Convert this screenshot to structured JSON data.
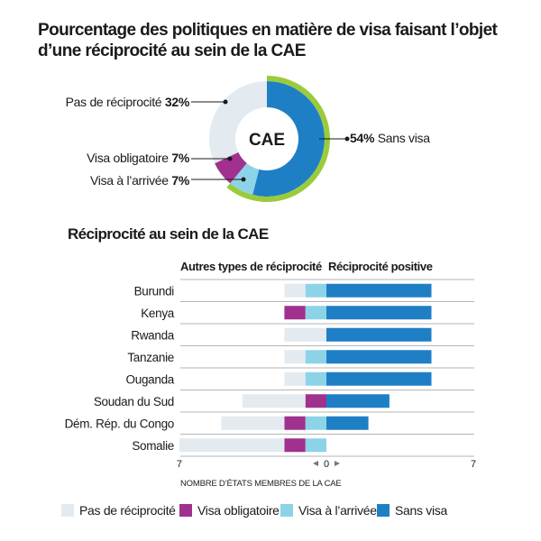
{
  "title_line1": "Pourcentage des politiques en matière de visa faisant l’objet",
  "title_line2": "d’une réciprocité au sein de la CAE",
  "donut": {
    "center_label": "CAE",
    "slices": [
      {
        "key": "sans_visa",
        "label": "Sans visa",
        "value": 54,
        "display": "54%"
      },
      {
        "key": "visa_arrivee",
        "label": "Visa à l’arrivée",
        "value": 7,
        "display": "7%"
      },
      {
        "key": "visa_obligatoire",
        "label": "Visa obligatoire",
        "value": 7,
        "display": "7%"
      },
      {
        "key": "pas_reciprocite",
        "label": "Pas de réciprocité",
        "value": 32,
        "display": "32%"
      }
    ]
  },
  "bar_section": {
    "subtitle": "Réciprocité au sein de la CAE",
    "left_header": "Autres types de réciprocité",
    "right_header": "Réciprocité positive",
    "x_left_tick": "7",
    "x_center_tick": "0",
    "x_right_tick": "7",
    "x_label": "NOMBRE D’ÉTATS MEMBRES DE LA CAE"
  },
  "colors": {
    "pas_reciprocite": "#e3eaf0",
    "visa_obligatoire": "#a0318e",
    "visa_arrivee": "#8dd3e8",
    "sans_visa": "#1f7fc5",
    "outer_ring": "#9bcb3b"
  },
  "legend": [
    {
      "key": "pas_reciprocite",
      "label": "Pas de réciprocité"
    },
    {
      "key": "visa_obligatoire",
      "label": "Visa obligatoire"
    },
    {
      "key": "visa_arrivee",
      "label": "Visa à l’arrivée"
    },
    {
      "key": "sans_visa",
      "label": "Sans visa"
    }
  ],
  "chart_data": [
    {
      "type": "pie",
      "title": "Pourcentage des politiques en matière de visa faisant l’objet d’une réciprocité au sein de la CAE",
      "categories": [
        "Sans visa",
        "Visa à l’arrivée",
        "Visa obligatoire",
        "Pas de réciprocité"
      ],
      "values": [
        54,
        7,
        7,
        32
      ]
    },
    {
      "type": "bar",
      "orientation": "horizontal-diverging",
      "title": "Réciprocité au sein de la CAE",
      "xlabel": "NOMBRE D’ÉTATS MEMBRES DE LA CAE",
      "xlim": [
        -7,
        7
      ],
      "categories": [
        "Burundi",
        "Kenya",
        "Rwanda",
        "Tanzanie",
        "Ouganda",
        "Soudan du Sud",
        "Dém. Rép. du Congo",
        "Somalie"
      ],
      "series": [
        {
          "name": "Pas de réciprocité",
          "side": "left",
          "values": [
            1,
            0,
            2,
            1,
            1,
            3,
            3,
            5
          ]
        },
        {
          "name": "Visa obligatoire",
          "side": "left",
          "values": [
            0,
            1,
            0,
            0,
            0,
            1,
            1,
            1
          ]
        },
        {
          "name": "Visa à l’arrivée",
          "side": "left",
          "values": [
            1,
            1,
            0,
            1,
            1,
            0,
            1,
            1
          ]
        },
        {
          "name": "Sans visa",
          "side": "right",
          "values": [
            5,
            5,
            5,
            5,
            5,
            3,
            2,
            0
          ]
        }
      ]
    }
  ]
}
